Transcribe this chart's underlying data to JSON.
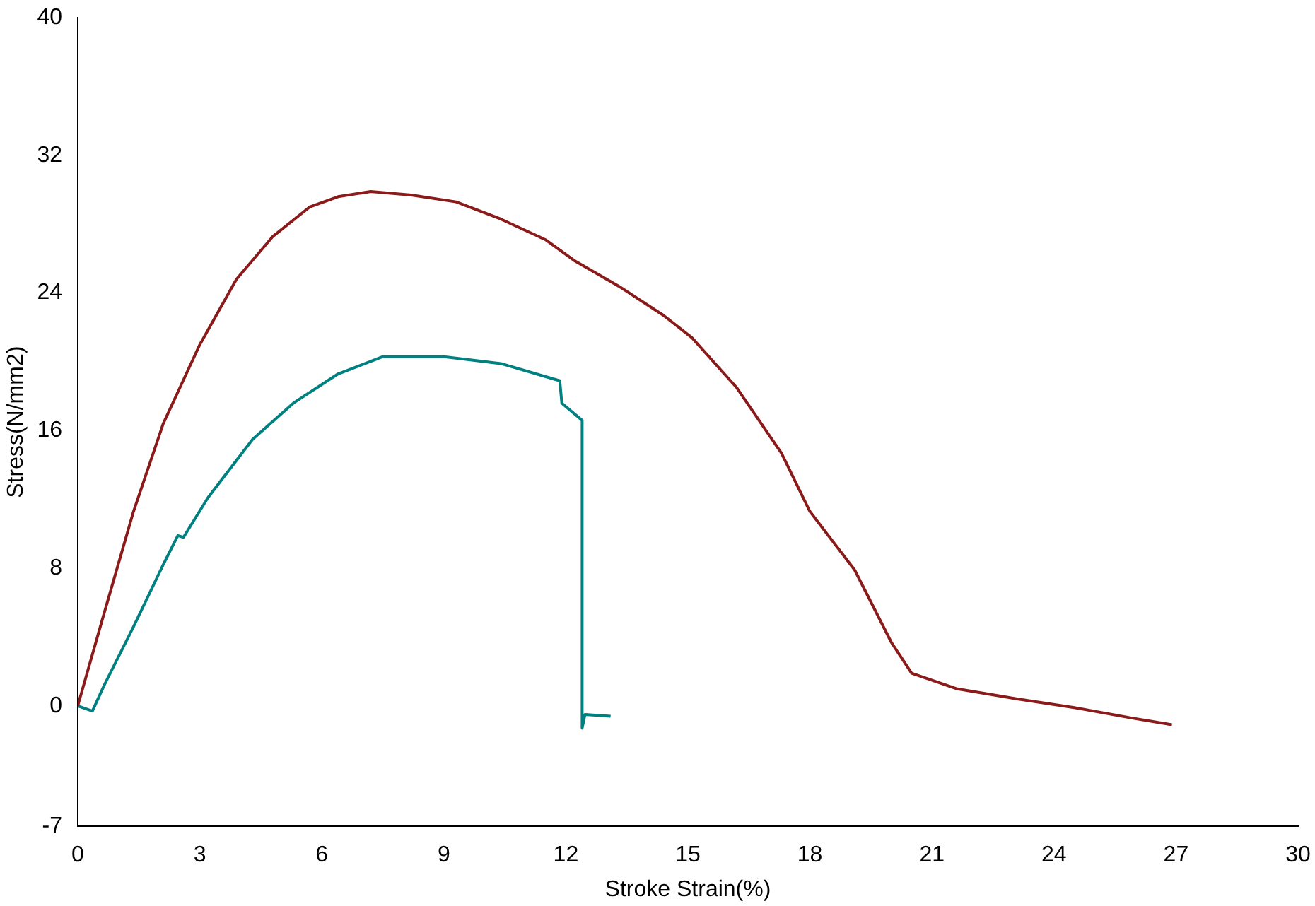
{
  "chart_data": {
    "type": "line",
    "xlabel": "Stroke Strain(%)",
    "ylabel": "Stress(N/mm2)",
    "xlim": [
      0,
      30
    ],
    "ylim": [
      -7,
      40
    ],
    "xticks": [
      0,
      3,
      6,
      9,
      12,
      15,
      18,
      21,
      24,
      27,
      30
    ],
    "yticks": [
      -7,
      0,
      8,
      16,
      24,
      32,
      40
    ],
    "grid": false,
    "legend": false,
    "series": [
      {
        "color": "#8b1a1a",
        "x": [
          0,
          0.65,
          1.37,
          2.1,
          3.0,
          3.9,
          4.8,
          5.7,
          6.4,
          7.2,
          8.2,
          9.3,
          10.4,
          11.5,
          12.2,
          13.3,
          14.4,
          15.1,
          16.2,
          17.3,
          18.0,
          19.1,
          20.0,
          20.5,
          21.6,
          23.1,
          24.5,
          25.9,
          26.9
        ],
        "values": [
          0,
          5.4,
          11.3,
          16.4,
          21.0,
          24.8,
          27.3,
          29.0,
          29.6,
          29.9,
          29.7,
          29.3,
          28.3,
          27.1,
          25.9,
          24.4,
          22.7,
          21.4,
          18.5,
          14.7,
          11.3,
          7.9,
          3.7,
          1.9,
          1.0,
          0.4,
          -0.1,
          -0.7,
          -1.1
        ]
      },
      {
        "color": "#008080",
        "x": [
          0,
          0.36,
          0.65,
          1.37,
          2.1,
          2.46,
          2.6,
          3.2,
          4.3,
          5.3,
          6.4,
          7.5,
          9.0,
          10.4,
          11.85,
          11.9,
          12.4,
          12.4,
          12.47,
          13.1
        ],
        "values": [
          0,
          -0.3,
          1.2,
          4.6,
          8.2,
          9.9,
          9.8,
          12.1,
          15.5,
          17.6,
          19.3,
          20.3,
          20.3,
          19.9,
          18.9,
          17.6,
          16.6,
          -1.3,
          -0.5,
          -0.6
        ]
      }
    ]
  }
}
